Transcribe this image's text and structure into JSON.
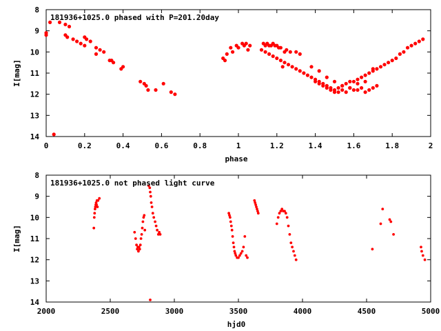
{
  "chart_data": [
    {
      "type": "scatter",
      "title": "181936+1025.0 phased with P=201.20day",
      "xlabel": "phase",
      "ylabel": "I[mag]",
      "xlim": [
        0,
        2
      ],
      "ylim": [
        14,
        8
      ],
      "y_inverted": true,
      "xticks": [
        "0",
        "0.2",
        "0.4",
        "0.6",
        "0.8",
        "1",
        "1.2",
        "1.4",
        "1.6",
        "1.8",
        "2"
      ],
      "yticks": [
        "8",
        "9",
        "10",
        "11",
        "12",
        "13",
        "14"
      ],
      "grid": false,
      "marker_color": "#ff0000",
      "series": [
        {
          "x": [
            0.0,
            0.0,
            0.02,
            0.04,
            0.07,
            0.1,
            0.1,
            0.11,
            0.12,
            0.14,
            0.16,
            0.18,
            0.2,
            0.2,
            0.21,
            0.23,
            0.26,
            0.26,
            0.28,
            0.3,
            0.33,
            0.34,
            0.35,
            0.39,
            0.4,
            0.49,
            0.51,
            0.52,
            0.53,
            0.57,
            0.61,
            0.65,
            0.67,
            0.92,
            0.93,
            0.94,
            0.96,
            0.97,
            0.99,
            1.0,
            1.02,
            1.03,
            1.04,
            1.05,
            1.06,
            1.13,
            1.14,
            1.15,
            1.16,
            1.17,
            1.18,
            1.19,
            1.2,
            1.21,
            1.22,
            1.23,
            1.24,
            1.25,
            1.27,
            1.3,
            1.32,
            1.12,
            1.14,
            1.16,
            1.18,
            1.2,
            1.22,
            1.24,
            1.26,
            1.28,
            1.3,
            1.32,
            1.34,
            1.36,
            1.38,
            1.4,
            1.42,
            1.44,
            1.46,
            1.48,
            1.5,
            1.52,
            1.54,
            1.56,
            1.58,
            1.6,
            1.62,
            1.64,
            1.66,
            1.68,
            1.7,
            1.72,
            1.74,
            1.76,
            1.78,
            1.8,
            1.82,
            1.84,
            1.86,
            1.88,
            1.9,
            1.92,
            1.94,
            1.96,
            1.4,
            1.42,
            1.44,
            1.46,
            1.48,
            1.5,
            1.52,
            1.54,
            1.56,
            1.58,
            1.6,
            1.62,
            1.64,
            1.66,
            1.68,
            1.7,
            1.72,
            1.38,
            1.42,
            1.46,
            1.5,
            1.54,
            1.58,
            1.62,
            1.66,
            1.7
          ],
          "y": [
            9.1,
            9.2,
            8.6,
            13.9,
            8.6,
            9.2,
            8.7,
            9.3,
            8.8,
            9.4,
            9.5,
            9.6,
            9.3,
            9.7,
            9.4,
            9.5,
            9.8,
            10.1,
            9.9,
            10.0,
            10.4,
            10.4,
            10.5,
            10.8,
            10.7,
            11.4,
            11.5,
            11.6,
            11.8,
            11.8,
            11.5,
            11.9,
            12.0,
            10.3,
            10.4,
            10.1,
            9.8,
            10.0,
            9.7,
            9.8,
            9.6,
            9.7,
            9.6,
            9.9,
            9.7,
            9.6,
            9.7,
            9.6,
            9.7,
            9.7,
            9.6,
            9.7,
            9.7,
            9.8,
            9.8,
            10.7,
            10.0,
            9.9,
            10.0,
            10.0,
            10.1,
            9.9,
            10.0,
            10.1,
            10.2,
            10.3,
            10.4,
            10.5,
            10.6,
            10.7,
            10.8,
            10.9,
            11.0,
            11.1,
            11.2,
            11.3,
            11.4,
            11.5,
            11.6,
            11.7,
            11.8,
            11.7,
            11.6,
            11.5,
            11.4,
            11.4,
            11.3,
            11.2,
            11.1,
            11.0,
            10.9,
            10.8,
            10.7,
            10.6,
            10.5,
            10.4,
            10.3,
            10.1,
            10.0,
            9.8,
            9.7,
            9.6,
            9.5,
            9.4,
            11.4,
            11.5,
            11.6,
            11.7,
            11.8,
            11.9,
            11.9,
            11.8,
            11.9,
            11.7,
            11.8,
            11.8,
            11.7,
            11.9,
            11.8,
            11.7,
            11.6,
            10.7,
            10.9,
            11.2,
            11.4,
            11.6,
            11.7,
            11.5,
            11.4,
            10.8
          ]
        }
      ]
    },
    {
      "type": "scatter",
      "title": "181936+1025.0 not phased light curve",
      "xlabel": "hjd0",
      "ylabel": "I[mag]",
      "xlim": [
        2000,
        5000
      ],
      "ylim": [
        14,
        8
      ],
      "y_inverted": true,
      "xticks": [
        "2000",
        "2500",
        "3000",
        "3500",
        "4000",
        "4500",
        "5000"
      ],
      "yticks": [
        "8",
        "9",
        "10",
        "11",
        "12",
        "13",
        "14"
      ],
      "grid": false,
      "marker_color": "#ff0000",
      "series": [
        {
          "x": [
            2372,
            2375,
            2378,
            2381,
            2384,
            2387,
            2390,
            2393,
            2396,
            2400,
            2405,
            2415,
            2690,
            2698,
            2705,
            2710,
            2715,
            2720,
            2725,
            2730,
            2735,
            2740,
            2745,
            2750,
            2755,
            2760,
            2765,
            2770,
            2800,
            2808,
            2812,
            2816,
            2820,
            2826,
            2832,
            2840,
            2850,
            2858,
            2866,
            2875,
            2882,
            2890,
            2812,
            3425,
            3430,
            3435,
            3440,
            3445,
            3450,
            3455,
            3460,
            3465,
            3470,
            3475,
            3480,
            3490,
            3500,
            3510,
            3520,
            3530,
            3540,
            3550,
            3560,
            3570,
            3625,
            3630,
            3635,
            3640,
            3645,
            3650,
            3655,
            3800,
            3810,
            3820,
            3830,
            3840,
            3850,
            3860,
            3870,
            3880,
            3890,
            3900,
            3910,
            3920,
            3930,
            3940,
            3950,
            4545,
            4610,
            4625,
            4680,
            4690,
            4710,
            4925,
            4930,
            4940,
            4955
          ],
          "y": [
            10.5,
            10.0,
            9.8,
            9.6,
            9.5,
            9.4,
            9.3,
            9.4,
            9.2,
            9.5,
            9.2,
            9.1,
            10.7,
            11.0,
            11.3,
            11.5,
            11.4,
            11.6,
            11.4,
            11.5,
            11.3,
            11.0,
            10.8,
            10.5,
            10.2,
            10.0,
            9.9,
            10.6,
            8.5,
            8.6,
            8.8,
            9.0,
            9.3,
            9.5,
            9.8,
            10.0,
            10.2,
            10.4,
            10.6,
            10.8,
            10.7,
            10.8,
            13.9,
            9.8,
            9.9,
            10.0,
            10.2,
            10.4,
            10.6,
            10.9,
            11.2,
            11.4,
            11.6,
            11.7,
            11.8,
            11.9,
            11.9,
            11.8,
            11.7,
            11.6,
            11.4,
            10.9,
            11.8,
            11.9,
            9.2,
            9.3,
            9.4,
            9.5,
            9.6,
            9.7,
            9.8,
            10.3,
            10.0,
            9.8,
            9.7,
            9.6,
            9.7,
            9.7,
            9.8,
            10.0,
            10.4,
            10.8,
            11.2,
            11.4,
            11.6,
            11.8,
            12.0,
            11.5,
            10.3,
            9.6,
            10.1,
            10.2,
            10.8,
            11.4,
            11.6,
            11.8,
            12.0
          ]
        }
      ]
    }
  ]
}
